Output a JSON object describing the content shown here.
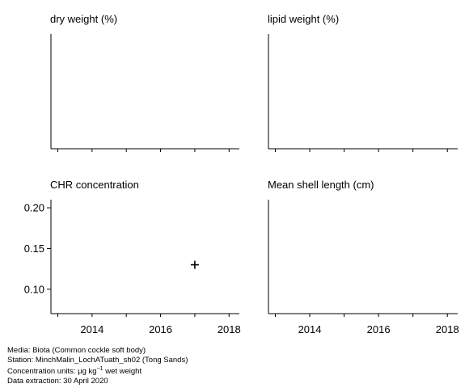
{
  "chart_data": [
    {
      "type": "scatter",
      "title": "dry weight (%)",
      "xlim": [
        2012.8,
        2018.3
      ],
      "x_ticks": [
        2013,
        2014,
        2015,
        2016,
        2017,
        2018
      ],
      "x_tick_labels": [],
      "y_ticks": [],
      "y_tick_labels": [],
      "points": []
    },
    {
      "type": "scatter",
      "title": "lipid weight (%)",
      "xlim": [
        2012.8,
        2018.3
      ],
      "x_ticks": [
        2013,
        2014,
        2015,
        2016,
        2017,
        2018
      ],
      "x_tick_labels": [],
      "y_ticks": [],
      "y_tick_labels": [],
      "points": []
    },
    {
      "type": "scatter",
      "title": "CHR concentration",
      "xlim": [
        2012.8,
        2018.3
      ],
      "ylim": [
        0.07,
        0.21
      ],
      "x_ticks": [
        2013,
        2014,
        2015,
        2016,
        2017,
        2018
      ],
      "x_tick_labels": [
        "2014",
        "2016",
        "2018"
      ],
      "y_ticks": [
        0.1,
        0.15,
        0.2
      ],
      "y_tick_labels": [
        "0.10",
        "0.15",
        "0.20"
      ],
      "points": [
        {
          "x": 2017,
          "y": 0.13,
          "marker": "+"
        }
      ]
    },
    {
      "type": "scatter",
      "title": "Mean shell length (cm)",
      "xlim": [
        2012.8,
        2018.3
      ],
      "x_ticks": [
        2013,
        2014,
        2015,
        2016,
        2017,
        2018
      ],
      "x_tick_labels": [
        "2014",
        "2016",
        "2018"
      ],
      "y_ticks": [],
      "y_tick_labels": [],
      "points": []
    }
  ],
  "footer": {
    "media": "Media: Biota (Common cockle soft body)",
    "station": "Station: MinchMalin_LochATuath_sh02 (Tong Sands)",
    "units_prefix": "Concentration units:",
    "units_unit": "μg kg",
    "units_exp": "−1",
    "units_suffix": "wet weight",
    "extraction": "Data extraction: 30 April 2020"
  }
}
